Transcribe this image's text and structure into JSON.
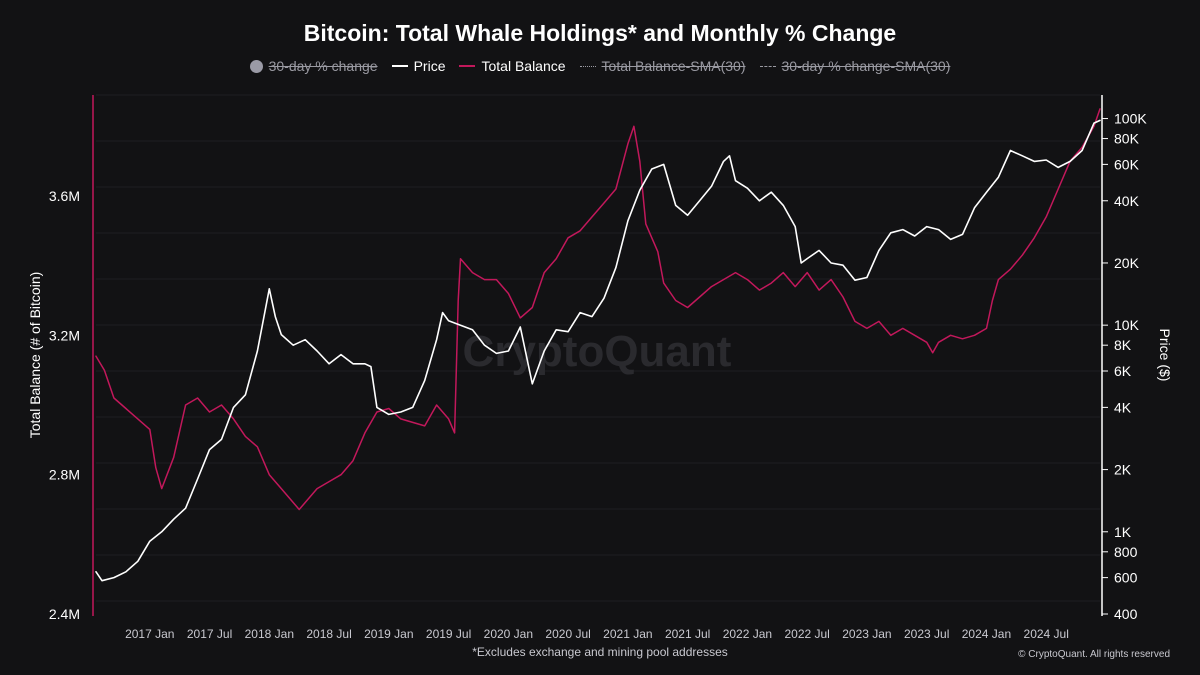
{
  "chart_data": {
    "type": "line",
    "title": "Bitcoin: Total Whale Holdings* and Monthly % Change",
    "legend": [
      {
        "name": "30-day % change",
        "style": "dot",
        "active": false
      },
      {
        "name": "Price",
        "style": "line-white",
        "active": true
      },
      {
        "name": "Total Balance",
        "style": "line-pink",
        "active": true
      },
      {
        "name": "Total Balance-SMA(30)",
        "style": "dotted",
        "active": false
      },
      {
        "name": "30-day % change-SMA(30)",
        "style": "dashed",
        "active": false
      }
    ],
    "x_tick_labels": [
      "2017 Jan",
      "2017 Jul",
      "2018 Jan",
      "2018 Jul",
      "2019 Jan",
      "2019 Jul",
      "2020 Jan",
      "2020 Jul",
      "2021 Jan",
      "2021 Jul",
      "2022 Jan",
      "2022 Jul",
      "2023 Jan",
      "2023 Jul",
      "2024 Jan",
      "2024 Jul"
    ],
    "x_range": [
      2016.55,
      2024.95
    ],
    "left_axis": {
      "label": "Total Balance (# of Bitcoin)",
      "ticks": [
        "2.4M",
        "2.8M",
        "3.2M",
        "3.6M"
      ],
      "tick_values": [
        2400000,
        2800000,
        3200000,
        3600000
      ],
      "range": [
        2400000,
        3890000
      ]
    },
    "right_axis": {
      "label": "Price ($)",
      "scale": "log",
      "ticks": [
        "400",
        "600",
        "800",
        "1K",
        "2K",
        "4K",
        "6K",
        "8K",
        "10K",
        "20K",
        "40K",
        "60K",
        "80K",
        "100K"
      ],
      "tick_values": [
        400,
        600,
        800,
        1000,
        2000,
        4000,
        6000,
        8000,
        10000,
        20000,
        40000,
        60000,
        80000,
        100000
      ],
      "range": [
        400,
        130000
      ]
    },
    "series": [
      {
        "name": "Total Balance",
        "color": "#c2185b",
        "points": [
          [
            2016.55,
            3140000
          ],
          [
            2016.62,
            3100000
          ],
          [
            2016.7,
            3020000
          ],
          [
            2016.8,
            2990000
          ],
          [
            2016.9,
            2960000
          ],
          [
            2017.0,
            2930000
          ],
          [
            2017.05,
            2820000
          ],
          [
            2017.1,
            2760000
          ],
          [
            2017.2,
            2850000
          ],
          [
            2017.3,
            3000000
          ],
          [
            2017.4,
            3020000
          ],
          [
            2017.5,
            2980000
          ],
          [
            2017.6,
            3000000
          ],
          [
            2017.7,
            2960000
          ],
          [
            2017.8,
            2910000
          ],
          [
            2017.9,
            2880000
          ],
          [
            2018.0,
            2800000
          ],
          [
            2018.1,
            2760000
          ],
          [
            2018.2,
            2720000
          ],
          [
            2018.25,
            2700000
          ],
          [
            2018.3,
            2720000
          ],
          [
            2018.4,
            2760000
          ],
          [
            2018.5,
            2780000
          ],
          [
            2018.6,
            2800000
          ],
          [
            2018.7,
            2840000
          ],
          [
            2018.8,
            2920000
          ],
          [
            2018.9,
            2980000
          ],
          [
            2019.0,
            2990000
          ],
          [
            2019.1,
            2960000
          ],
          [
            2019.2,
            2950000
          ],
          [
            2019.3,
            2940000
          ],
          [
            2019.4,
            3000000
          ],
          [
            2019.5,
            2960000
          ],
          [
            2019.55,
            2920000
          ],
          [
            2019.58,
            3300000
          ],
          [
            2019.6,
            3420000
          ],
          [
            2019.7,
            3380000
          ],
          [
            2019.8,
            3360000
          ],
          [
            2019.9,
            3360000
          ],
          [
            2020.0,
            3320000
          ],
          [
            2020.1,
            3250000
          ],
          [
            2020.2,
            3280000
          ],
          [
            2020.3,
            3380000
          ],
          [
            2020.4,
            3420000
          ],
          [
            2020.5,
            3480000
          ],
          [
            2020.6,
            3500000
          ],
          [
            2020.7,
            3540000
          ],
          [
            2020.8,
            3580000
          ],
          [
            2020.9,
            3620000
          ],
          [
            2021.0,
            3750000
          ],
          [
            2021.05,
            3800000
          ],
          [
            2021.1,
            3700000
          ],
          [
            2021.15,
            3520000
          ],
          [
            2021.2,
            3480000
          ],
          [
            2021.25,
            3440000
          ],
          [
            2021.3,
            3350000
          ],
          [
            2021.4,
            3300000
          ],
          [
            2021.5,
            3280000
          ],
          [
            2021.6,
            3310000
          ],
          [
            2021.7,
            3340000
          ],
          [
            2021.8,
            3360000
          ],
          [
            2021.9,
            3380000
          ],
          [
            2022.0,
            3360000
          ],
          [
            2022.1,
            3330000
          ],
          [
            2022.2,
            3350000
          ],
          [
            2022.3,
            3380000
          ],
          [
            2022.4,
            3340000
          ],
          [
            2022.5,
            3380000
          ],
          [
            2022.6,
            3330000
          ],
          [
            2022.7,
            3360000
          ],
          [
            2022.8,
            3310000
          ],
          [
            2022.9,
            3240000
          ],
          [
            2023.0,
            3220000
          ],
          [
            2023.1,
            3240000
          ],
          [
            2023.2,
            3200000
          ],
          [
            2023.3,
            3220000
          ],
          [
            2023.4,
            3200000
          ],
          [
            2023.5,
            3180000
          ],
          [
            2023.55,
            3150000
          ],
          [
            2023.6,
            3180000
          ],
          [
            2023.7,
            3200000
          ],
          [
            2023.8,
            3190000
          ],
          [
            2023.9,
            3200000
          ],
          [
            2024.0,
            3220000
          ],
          [
            2024.05,
            3300000
          ],
          [
            2024.1,
            3360000
          ],
          [
            2024.2,
            3390000
          ],
          [
            2024.3,
            3430000
          ],
          [
            2024.4,
            3480000
          ],
          [
            2024.5,
            3540000
          ],
          [
            2024.6,
            3620000
          ],
          [
            2024.7,
            3700000
          ],
          [
            2024.8,
            3740000
          ],
          [
            2024.9,
            3800000
          ],
          [
            2024.95,
            3850000
          ]
        ]
      },
      {
        "name": "Price",
        "color": "#ffffff",
        "points": [
          [
            2016.55,
            640
          ],
          [
            2016.6,
            580
          ],
          [
            2016.7,
            600
          ],
          [
            2016.8,
            640
          ],
          [
            2016.9,
            720
          ],
          [
            2017.0,
            900
          ],
          [
            2017.1,
            1000
          ],
          [
            2017.2,
            1150
          ],
          [
            2017.3,
            1300
          ],
          [
            2017.4,
            1800
          ],
          [
            2017.5,
            2500
          ],
          [
            2017.6,
            2800
          ],
          [
            2017.7,
            4000
          ],
          [
            2017.8,
            4600
          ],
          [
            2017.9,
            7500
          ],
          [
            2018.0,
            15000
          ],
          [
            2018.05,
            11000
          ],
          [
            2018.1,
            9000
          ],
          [
            2018.2,
            8000
          ],
          [
            2018.3,
            8500
          ],
          [
            2018.4,
            7500
          ],
          [
            2018.5,
            6500
          ],
          [
            2018.6,
            7200
          ],
          [
            2018.7,
            6500
          ],
          [
            2018.8,
            6500
          ],
          [
            2018.85,
            6300
          ],
          [
            2018.9,
            4000
          ],
          [
            2019.0,
            3700
          ],
          [
            2019.1,
            3800
          ],
          [
            2019.2,
            4000
          ],
          [
            2019.3,
            5400
          ],
          [
            2019.4,
            8500
          ],
          [
            2019.45,
            11500
          ],
          [
            2019.5,
            10500
          ],
          [
            2019.6,
            10000
          ],
          [
            2019.7,
            9500
          ],
          [
            2019.8,
            8000
          ],
          [
            2019.9,
            7300
          ],
          [
            2020.0,
            7500
          ],
          [
            2020.1,
            9800
          ],
          [
            2020.2,
            5200
          ],
          [
            2020.3,
            7500
          ],
          [
            2020.4,
            9500
          ],
          [
            2020.5,
            9300
          ],
          [
            2020.6,
            11500
          ],
          [
            2020.7,
            11000
          ],
          [
            2020.8,
            13500
          ],
          [
            2020.9,
            19000
          ],
          [
            2021.0,
            32000
          ],
          [
            2021.1,
            45000
          ],
          [
            2021.2,
            57000
          ],
          [
            2021.3,
            60000
          ],
          [
            2021.4,
            38000
          ],
          [
            2021.5,
            34000
          ],
          [
            2021.6,
            40000
          ],
          [
            2021.7,
            47000
          ],
          [
            2021.8,
            62000
          ],
          [
            2021.85,
            66000
          ],
          [
            2021.9,
            50000
          ],
          [
            2022.0,
            46000
          ],
          [
            2022.1,
            40000
          ],
          [
            2022.2,
            44000
          ],
          [
            2022.3,
            38000
          ],
          [
            2022.4,
            30000
          ],
          [
            2022.45,
            20000
          ],
          [
            2022.5,
            21000
          ],
          [
            2022.6,
            23000
          ],
          [
            2022.7,
            20000
          ],
          [
            2022.8,
            19500
          ],
          [
            2022.9,
            16500
          ],
          [
            2023.0,
            17000
          ],
          [
            2023.1,
            23000
          ],
          [
            2023.2,
            28000
          ],
          [
            2023.3,
            29000
          ],
          [
            2023.4,
            27000
          ],
          [
            2023.5,
            30000
          ],
          [
            2023.6,
            29000
          ],
          [
            2023.7,
            26000
          ],
          [
            2023.8,
            27500
          ],
          [
            2023.9,
            37000
          ],
          [
            2024.0,
            44000
          ],
          [
            2024.1,
            52000
          ],
          [
            2024.2,
            70000
          ],
          [
            2024.3,
            66000
          ],
          [
            2024.4,
            62000
          ],
          [
            2024.5,
            63000
          ],
          [
            2024.6,
            58000
          ],
          [
            2024.7,
            62000
          ],
          [
            2024.8,
            70000
          ],
          [
            2024.9,
            95000
          ],
          [
            2024.95,
            98000
          ]
        ]
      }
    ],
    "watermark": "CryptoQuant",
    "footnote": "*Excludes exchange and mining pool addresses",
    "copyright": "© CryptoQuant. All rights reserved"
  }
}
